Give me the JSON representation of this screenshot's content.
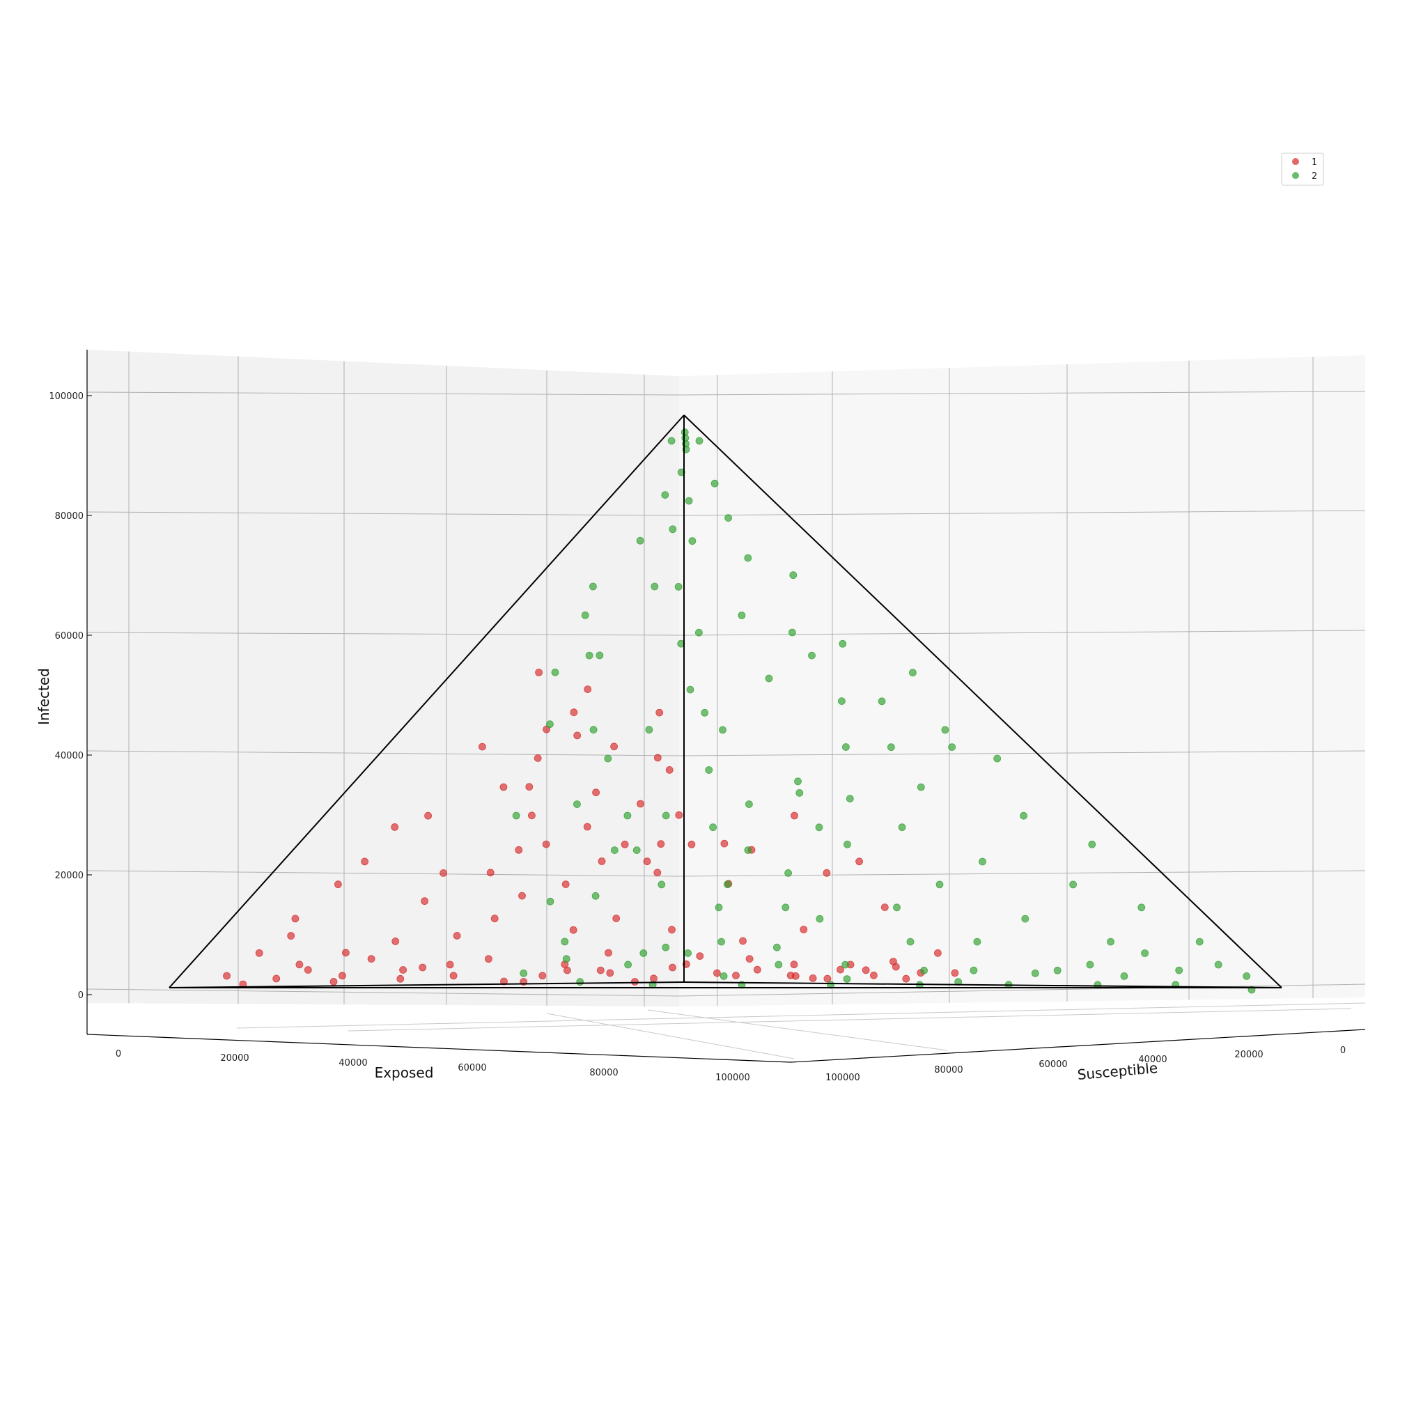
{
  "colors": {
    "series_1": "#d62728",
    "series_2": "#2ca02c",
    "pane_left": "#f2f2f2",
    "pane_right": "#f7f7f7",
    "grid": "#b0b0b0",
    "edge": "#000000"
  },
  "chart_data": {
    "type": "scatter",
    "projection": "3d",
    "title": "",
    "xlabel": "Exposed",
    "ylabel": "Susceptible",
    "zlabel": "Infected",
    "xlim": [
      0,
      100000
    ],
    "ylim": [
      0,
      100000
    ],
    "zlim": [
      0,
      100000
    ],
    "x_ticks": [
      "0",
      "20000",
      "40000",
      "60000",
      "80000",
      "100000"
    ],
    "y_ticks": [
      "0",
      "20000",
      "40000",
      "60000",
      "80000",
      "100000"
    ],
    "z_ticks": [
      "0",
      "20000",
      "40000",
      "60000",
      "80000",
      "100000"
    ],
    "grid": true,
    "legend_position": "top-right",
    "simplex_total": 100000,
    "series": [
      {
        "name": "1",
        "color": "#d62728",
        "points": [
          [
            88000,
            2000,
            500
          ],
          [
            85000,
            5000,
            1500
          ],
          [
            80000,
            6000,
            3000
          ],
          [
            78000,
            10000,
            2000
          ],
          [
            75000,
            8000,
            6000
          ],
          [
            72000,
            15000,
            3000
          ],
          [
            70000,
            12000,
            8000
          ],
          [
            68000,
            20000,
            2000
          ],
          [
            65000,
            18000,
            9000
          ],
          [
            64000,
            25000,
            1000
          ],
          [
            62000,
            10000,
            15000
          ],
          [
            60000,
            28000,
            2000
          ],
          [
            60000,
            20000,
            12000
          ],
          [
            58000,
            30000,
            4000
          ],
          [
            57000,
            22000,
            16000
          ],
          [
            55000,
            35000,
            2500
          ],
          [
            55000,
            15000,
            20000
          ],
          [
            53000,
            33000,
            6000
          ],
          [
            52000,
            25000,
            18000
          ],
          [
            50000,
            38000,
            1500
          ],
          [
            50000,
            20000,
            25000
          ],
          [
            48000,
            30000,
            12000
          ],
          [
            47000,
            15000,
            30000
          ],
          [
            46000,
            40000,
            4000
          ],
          [
            45000,
            25000,
            22000
          ],
          [
            44000,
            12000,
            35000
          ],
          [
            43000,
            35000,
            10000
          ],
          [
            42000,
            20000,
            28000
          ],
          [
            41000,
            44000,
            2000
          ],
          [
            40000,
            30000,
            20000
          ],
          [
            40000,
            10000,
            40000
          ],
          [
            38000,
            45000,
            3000
          ],
          [
            38000,
            18000,
            34000
          ],
          [
            37000,
            28000,
            25000
          ],
          [
            36000,
            8000,
            45000
          ],
          [
            35000,
            48000,
            2000
          ],
          [
            35000,
            40000,
            8000
          ],
          [
            34000,
            22000,
            32000
          ],
          [
            33000,
            50000,
            1500
          ],
          [
            33000,
            10000,
            48000
          ],
          [
            32000,
            35000,
            18000
          ],
          [
            31000,
            15000,
            42000
          ],
          [
            30000,
            52000,
            3000
          ],
          [
            30000,
            25000,
            30000
          ],
          [
            29000,
            45000,
            10000
          ],
          [
            28000,
            8000,
            52000
          ],
          [
            27000,
            55000,
            2000
          ],
          [
            27000,
            30000,
            25000
          ],
          [
            26000,
            18000,
            40000
          ],
          [
            25000,
            57000,
            3500
          ],
          [
            90000,
            1000,
            2000
          ],
          [
            86000,
            3000,
            6000
          ],
          [
            82000,
            12000,
            1000
          ],
          [
            79000,
            3000,
            12000
          ],
          [
            76000,
            18000,
            1500
          ],
          [
            73000,
            5000,
            18000
          ],
          [
            71000,
            22000,
            4000
          ],
          [
            69000,
            6000,
            22000
          ],
          [
            66000,
            30000,
            1000
          ],
          [
            63000,
            14000,
            20000
          ],
          [
            61000,
            33000,
            3000
          ],
          [
            59000,
            8000,
            30000
          ],
          [
            56000,
            40000,
            1000
          ],
          [
            54000,
            28000,
            10000
          ],
          [
            51000,
            42000,
            3500
          ],
          [
            49000,
            12000,
            35000
          ],
          [
            47000,
            46000,
            2500
          ],
          [
            45000,
            5000,
            42000
          ],
          [
            43000,
            48000,
            5000
          ],
          [
            42000,
            30000,
            22000
          ],
          [
            39000,
            52000,
            4000
          ],
          [
            37000,
            14000,
            44000
          ],
          [
            36000,
            55000,
            1500
          ],
          [
            34000,
            5000,
            55000
          ],
          [
            32000,
            58000,
            3000
          ],
          [
            31000,
            38000,
            24000
          ],
          [
            29000,
            60000,
            4500
          ],
          [
            28000,
            20000,
            48000
          ],
          [
            26000,
            62000,
            2500
          ],
          [
            25000,
            40000,
            30000
          ],
          [
            84000,
            8000,
            4000
          ],
          [
            81000,
            4000,
            9000
          ],
          [
            77000,
            14000,
            5000
          ],
          [
            74000,
            20000,
            3500
          ],
          [
            67000,
            25000,
            5000
          ],
          [
            62000,
            5000,
            28000
          ],
          [
            58000,
            36000,
            3000
          ],
          [
            53000,
            18000,
            24000
          ],
          [
            48000,
            44000,
            5500
          ],
          [
            44000,
            28000,
            25000
          ],
          [
            41000,
            54000,
            2000
          ],
          [
            38000,
            34000,
            25000
          ],
          [
            35000,
            58000,
            4000
          ],
          [
            33000,
            26000,
            38000
          ],
          [
            30000,
            63000,
            1500
          ],
          [
            28000,
            48000,
            20000
          ],
          [
            26000,
            56000,
            14000
          ],
          [
            25000,
            64000,
            6000
          ],
          [
            24000,
            50000,
            22000
          ],
          [
            24000,
            66000,
            2500
          ]
        ]
      },
      {
        "name": "2",
        "color": "#2ca02c",
        "points": [
          [
            2000,
            2000,
            95000
          ],
          [
            4000,
            3000,
            90000
          ],
          [
            1000,
            6000,
            88000
          ],
          [
            6000,
            2000,
            86000
          ],
          [
            3000,
            10000,
            82000
          ],
          [
            8000,
            5000,
            80000
          ],
          [
            5000,
            15000,
            75000
          ],
          [
            12000,
            3000,
            78000
          ],
          [
            2000,
            20000,
            72000
          ],
          [
            15000,
            8000,
            70000
          ],
          [
            8000,
            25000,
            62000
          ],
          [
            20000,
            2000,
            70000
          ],
          [
            4000,
            30000,
            60000
          ],
          [
            18000,
            15000,
            60000
          ],
          [
            25000,
            5000,
            65000
          ],
          [
            2000,
            40000,
            55000
          ],
          [
            10000,
            35000,
            50000
          ],
          [
            22000,
            20000,
            52000
          ],
          [
            28000,
            10000,
            58000
          ],
          [
            5000,
            48000,
            45000
          ],
          [
            15000,
            40000,
            42000
          ],
          [
            25000,
            28000,
            45000
          ],
          [
            32000,
            6000,
            55000
          ],
          [
            3000,
            55000,
            40000
          ],
          [
            12000,
            50000,
            35000
          ],
          [
            22000,
            38000,
            36000
          ],
          [
            30000,
            20000,
            45000
          ],
          [
            6000,
            62000,
            30000
          ],
          [
            18000,
            52000,
            28000
          ],
          [
            28000,
            35000,
            32000
          ],
          [
            35000,
            15000,
            45000
          ],
          [
            2000,
            70000,
            25000
          ],
          [
            14000,
            62000,
            22000
          ],
          [
            24000,
            48000,
            25000
          ],
          [
            36000,
            28000,
            30000
          ],
          [
            8000,
            72000,
            18000
          ],
          [
            20000,
            60000,
            18000
          ],
          [
            32000,
            45000,
            20000
          ],
          [
            40000,
            25000,
            30000
          ],
          [
            4000,
            80000,
            14000
          ],
          [
            15000,
            70000,
            12000
          ],
          [
            26000,
            58000,
            14000
          ],
          [
            38000,
            40000,
            18000
          ],
          [
            44000,
            20000,
            32000
          ],
          [
            2000,
            88000,
            8000
          ],
          [
            10000,
            80000,
            8000
          ],
          [
            22000,
            68000,
            8000
          ],
          [
            34000,
            52000,
            12000
          ],
          [
            45000,
            35000,
            18000
          ],
          [
            50000,
            15000,
            30000
          ],
          [
            1000,
            95000,
            2000
          ],
          [
            6000,
            88000,
            3000
          ],
          [
            14000,
            80000,
            4000
          ],
          [
            25000,
            70000,
            3000
          ],
          [
            36000,
            58000,
            4000
          ],
          [
            48000,
            42000,
            6000
          ],
          [
            55000,
            25000,
            15000
          ],
          [
            3000,
            92000,
            4000
          ],
          [
            12000,
            84000,
            2000
          ],
          [
            20000,
            76000,
            2500
          ],
          [
            30000,
            66000,
            3000
          ],
          [
            42000,
            52000,
            4000
          ],
          [
            52000,
            38000,
            6000
          ],
          [
            58000,
            30000,
            8000
          ],
          [
            18000,
            18000,
            62000
          ],
          [
            15000,
            12000,
            70000
          ],
          [
            10000,
            10000,
            78000
          ],
          [
            6000,
            6000,
            85000
          ],
          [
            12000,
            20000,
            65000
          ],
          [
            10000,
            30000,
            58000
          ],
          [
            35000,
            35000,
            28000
          ],
          [
            30000,
            30000,
            38000
          ],
          [
            25000,
            25000,
            48000
          ],
          [
            20000,
            45000,
            33000
          ],
          [
            45000,
            45000,
            8000
          ],
          [
            40000,
            50000,
            7000
          ],
          [
            50000,
            40000,
            7000
          ],
          [
            55000,
            38000,
            4000
          ],
          [
            60000,
            32000,
            5000
          ],
          [
            48000,
            48000,
            2000
          ],
          [
            38000,
            60000,
            1500
          ],
          [
            28000,
            70000,
            1000
          ],
          [
            44000,
            30000,
            24000
          ],
          [
            38000,
            20000,
            40000
          ],
          [
            16000,
            28000,
            54000
          ],
          [
            8000,
            40000,
            50000
          ],
          [
            6000,
            50000,
            42000
          ],
          [
            12000,
            45000,
            42000
          ],
          [
            30000,
            10000,
            58000
          ],
          [
            40000,
            12000,
            46000
          ],
          [
            46000,
            28000,
            24000
          ],
          [
            52000,
            30000,
            16000
          ],
          [
            24000,
            40000,
            34000
          ],
          [
            34000,
            40000,
            24000
          ],
          [
            42000,
            42000,
            14000
          ],
          [
            18000,
            78000,
            3000
          ],
          [
            8000,
            84000,
            6000
          ],
          [
            28000,
            62000,
            8000
          ],
          [
            36000,
            48000,
            14000
          ],
          [
            26000,
            45000,
            28000
          ],
          [
            3000,
            97000,
            500
          ],
          [
            9000,
            90000,
            500
          ],
          [
            16000,
            83000,
            500
          ],
          [
            24000,
            75000,
            500
          ],
          [
            32000,
            67000,
            500
          ],
          [
            40000,
            59000,
            500
          ],
          [
            48000,
            51000,
            500
          ],
          [
            56000,
            43000,
            500
          ],
          [
            62000,
            36000,
            1000
          ],
          [
            66000,
            30000,
            2500
          ],
          [
            1500,
            1500,
            96000
          ],
          [
            500,
            3000,
            95500
          ],
          [
            3000,
            500,
            95500
          ],
          [
            2500,
            2500,
            94000
          ],
          [
            1000,
            1000,
            97000
          ]
        ]
      }
    ]
  }
}
